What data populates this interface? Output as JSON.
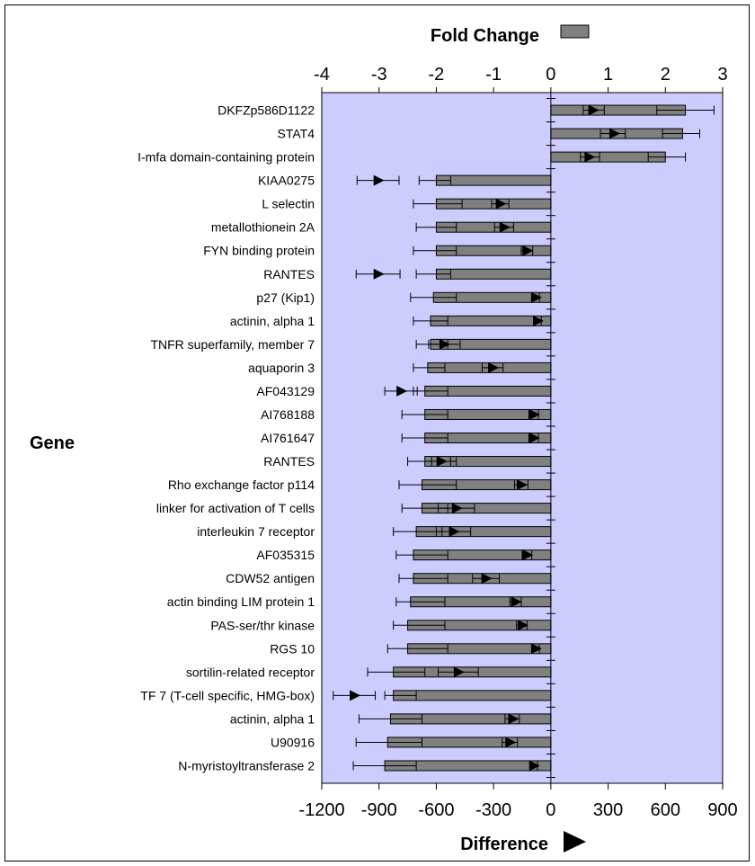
{
  "chart_data": {
    "type": "bar",
    "top_axis_title": "Fold Change",
    "bottom_axis_title": "Difference",
    "ylabel": "Gene",
    "fold_axis": {
      "range": [
        -4,
        3
      ],
      "ticks": [
        "-4",
        "-3",
        "-2",
        "-1",
        "0",
        "1",
        "2",
        "3"
      ]
    },
    "difference_axis": {
      "range": [
        -1200,
        900
      ],
      "ticks": [
        "-1200",
        "-900",
        "-600",
        "-300",
        "0",
        "300",
        "600",
        "900"
      ]
    },
    "plot_background": "#ccccff",
    "bar_color": "#808080",
    "genes": [
      "DKFZp586D1122",
      "STAT4",
      "I-mfa domain-containing protein",
      "KIAA0275",
      "L selectin",
      "metallothionein 2A",
      "FYN binding protein",
      "RANTES",
      "p27 (Kip1)",
      "actinin, alpha 1",
      "TNFR superfamily, member 7",
      "aquaporin 3",
      "AF043129",
      "AI768188",
      "AI761647",
      "RANTES",
      "Rho exchange factor p114",
      "linker for activation of T cells",
      "interleukin 7 receptor",
      "AF035315",
      "CDW52 antigen",
      "actin binding LIM protein 1",
      "PAS-ser/thr kinase",
      "RGS 10",
      "sortilin-related receptor",
      "TF 7 (T-cell specific, HMG-box)",
      "actinin, alpha 1",
      "U90916",
      "N-myristoyltransferase 2"
    ],
    "series": [
      {
        "name": "Fold Change",
        "values": [
          2.35,
          2.3,
          2.0,
          -2.0,
          -2.0,
          -2.0,
          -2.0,
          -2.0,
          -2.05,
          -2.1,
          -2.1,
          -2.15,
          -2.2,
          -2.2,
          -2.2,
          -2.2,
          -2.25,
          -2.25,
          -2.35,
          -2.4,
          -2.4,
          -2.45,
          -2.5,
          -2.5,
          -2.75,
          -2.75,
          -2.8,
          -2.85,
          -2.9
        ],
        "error_low": [
          1.85,
          1.95,
          1.7,
          -1.75,
          -1.55,
          -1.65,
          -1.65,
          -1.75,
          -1.65,
          -1.8,
          -1.8,
          -1.85,
          -1.8,
          -1.8,
          -1.8,
          -1.65,
          -1.65,
          -1.8,
          -1.9,
          -1.8,
          -1.8,
          -1.85,
          -1.85,
          -1.8,
          -2.2,
          -2.35,
          -2.25,
          -2.25,
          -2.35
        ],
        "error_high": [
          2.85,
          2.6,
          2.35,
          -2.3,
          -2.4,
          -2.35,
          -2.4,
          -2.35,
          -2.45,
          -2.4,
          -2.35,
          -2.4,
          -2.4,
          -2.6,
          -2.6,
          -2.5,
          -2.65,
          -2.6,
          -2.75,
          -2.7,
          -2.65,
          -2.7,
          -2.75,
          -2.85,
          -3.2,
          -2.9,
          -3.35,
          -3.4,
          -3.45
        ]
      },
      {
        "name": "Difference",
        "values": [
          220,
          330,
          200,
          -905,
          -265,
          -245,
          -125,
          -905,
          -80,
          -70,
          -560,
          -305,
          -785,
          -90,
          -90,
          -575,
          -155,
          -495,
          -510,
          -125,
          -340,
          -185,
          -150,
          -80,
          -485,
          -1030,
          -200,
          -215,
          -90
        ],
        "error_low": [
          170,
          260,
          155,
          -795,
          -220,
          -195,
          -95,
          -790,
          -60,
          -50,
          -475,
          -250,
          -700,
          -65,
          -65,
          -525,
          -120,
          -400,
          -420,
          -100,
          -270,
          -155,
          -125,
          -60,
          -380,
          -920,
          -165,
          -175,
          -70
        ],
        "error_high": [
          280,
          390,
          255,
          -1015,
          -310,
          -295,
          -155,
          -1020,
          -100,
          -90,
          -640,
          -360,
          -870,
          -115,
          -115,
          -625,
          -190,
          -590,
          -600,
          -150,
          -410,
          -215,
          -180,
          -100,
          -590,
          -1140,
          -240,
          -255,
          -110
        ]
      }
    ]
  }
}
